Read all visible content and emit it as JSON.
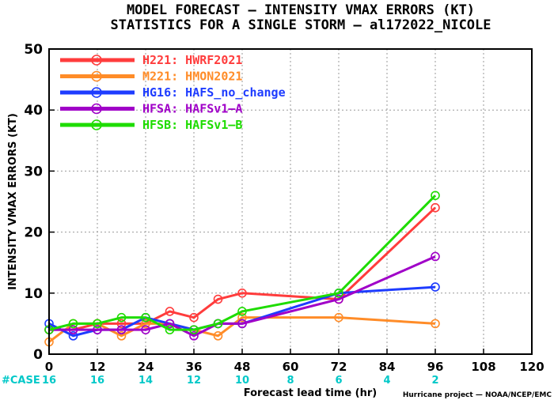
{
  "title_line1": "MODEL FORECAST — INTENSITY VMAX ERRORS (KT)",
  "title_line2": "STATISTICS FOR A SINGLE STORM — al172022_NICOLE",
  "case_label": "#CASE",
  "credit": "Hurricane project — NOAA/NCEP/EMC",
  "colors": {
    "case": "#00c8c8",
    "grid": "#999999"
  },
  "chart_data": {
    "type": "line",
    "title": "MODEL FORECAST — INTENSITY VMAX ERRORS (KT)",
    "subtitle": "STATISTICS FOR A SINGLE STORM — al172022_NICOLE",
    "xlabel": "Forecast lead time (hr)",
    "ylabel": "INTENSITY VMAX ERRORS (KT)",
    "xlim": [
      0,
      120
    ],
    "ylim": [
      0,
      50
    ],
    "xticks": [
      0,
      12,
      24,
      36,
      48,
      60,
      72,
      84,
      96,
      108,
      120
    ],
    "yticks": [
      0,
      10,
      20,
      30,
      40,
      50
    ],
    "grid": true,
    "legend_position": "top-left",
    "case_counts": [
      {
        "x": 0,
        "label": "16"
      },
      {
        "x": 12,
        "label": "16"
      },
      {
        "x": 24,
        "label": "14"
      },
      {
        "x": 36,
        "label": "12"
      },
      {
        "x": 48,
        "label": "10"
      },
      {
        "x": 60,
        "label": "8"
      },
      {
        "x": 72,
        "label": "6"
      },
      {
        "x": 84,
        "label": "4"
      },
      {
        "x": 96,
        "label": "2"
      }
    ],
    "series": [
      {
        "name": "H221: HWRF2021",
        "color": "#ff3c3c",
        "x": [
          0,
          6,
          12,
          18,
          24,
          30,
          36,
          42,
          48,
          72,
          96
        ],
        "y": [
          4,
          4,
          5,
          5,
          5,
          7,
          6,
          9,
          10,
          9,
          24
        ]
      },
      {
        "name": "M221: HMON2021",
        "color": "#ff8c28",
        "x": [
          0,
          6,
          12,
          18,
          24,
          30,
          36,
          42,
          48,
          72,
          96
        ],
        "y": [
          2,
          5,
          5,
          3,
          5,
          5,
          4,
          3,
          6,
          6,
          5
        ]
      },
      {
        "name": "HG16: HAFS_no_change",
        "color": "#1e3cff",
        "x": [
          0,
          6,
          12,
          18,
          24,
          30,
          36,
          42,
          48,
          72,
          96
        ],
        "y": [
          5,
          3,
          4,
          4,
          6,
          5,
          4,
          5,
          5,
          10,
          11
        ]
      },
      {
        "name": "HFSA: HAFSv1—A",
        "color": "#a000c8",
        "x": [
          0,
          6,
          12,
          18,
          24,
          30,
          36,
          42,
          48,
          72,
          96
        ],
        "y": [
          4,
          4,
          4,
          4,
          4,
          5,
          3,
          5,
          5,
          9,
          16
        ]
      },
      {
        "name": "HFSB: HAFSv1—B",
        "color": "#1edc00",
        "x": [
          0,
          6,
          12,
          18,
          24,
          30,
          36,
          42,
          48,
          72,
          96
        ],
        "y": [
          4,
          5,
          5,
          6,
          6,
          4,
          4,
          5,
          7,
          10,
          26
        ]
      }
    ]
  }
}
